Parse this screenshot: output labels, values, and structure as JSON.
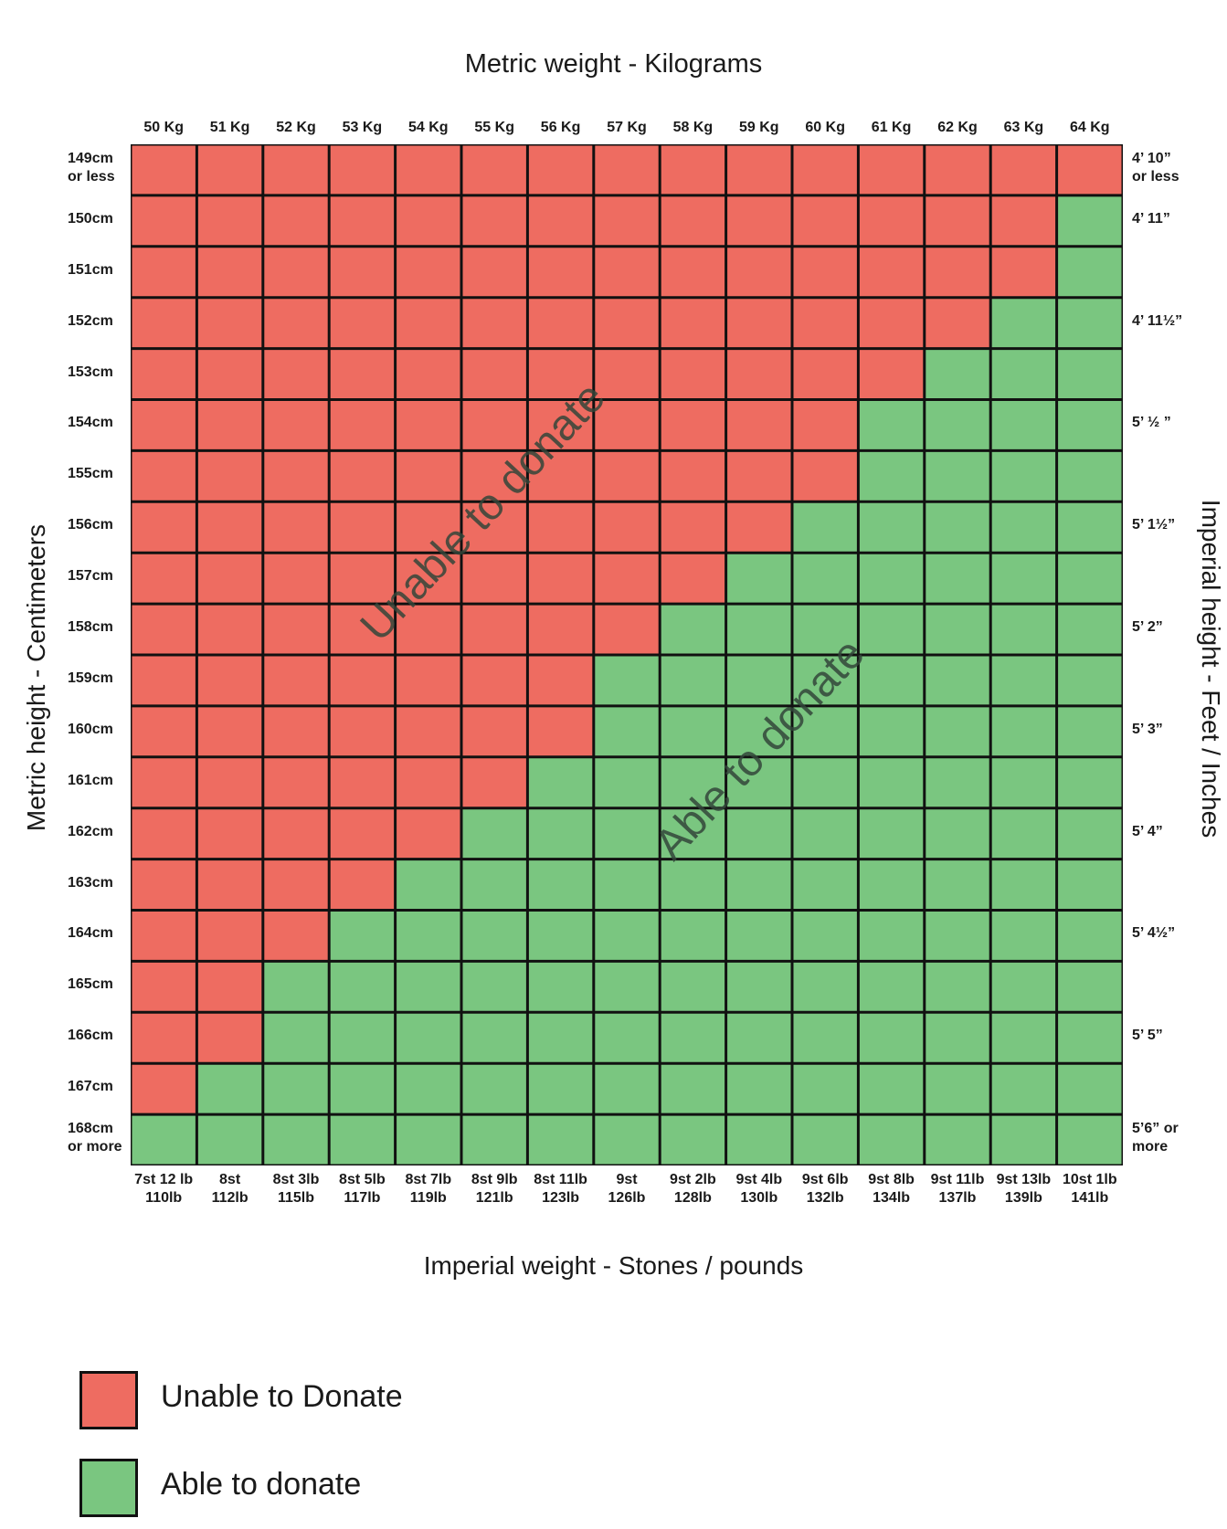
{
  "chart_data": {
    "type": "heatmap",
    "title_top": "Metric weight - Kilograms",
    "title_bottom": "Imperial weight - Stones / pounds",
    "ylabel_left": "Metric height - Centimeters",
    "ylabel_right": "Imperial height - Feet / Inches",
    "columns_kg": [
      "50 Kg",
      "51 Kg",
      "52 Kg",
      "53 Kg",
      "54 Kg",
      "55 Kg",
      "56 Kg",
      "57 Kg",
      "58 Kg",
      "59 Kg",
      "60 Kg",
      "61 Kg",
      "62 Kg",
      "63 Kg",
      "64 Kg"
    ],
    "columns_imperial": [
      [
        "7st 12 lb",
        "110lb"
      ],
      [
        "8st",
        "112lb"
      ],
      [
        "8st 3lb",
        "115lb"
      ],
      [
        "8st 5lb",
        "117lb"
      ],
      [
        "8st 7lb",
        "119lb"
      ],
      [
        "8st 9lb",
        "121lb"
      ],
      [
        "8st 11lb",
        "123lb"
      ],
      [
        "9st",
        "126lb"
      ],
      [
        "9st 2lb",
        "128lb"
      ],
      [
        "9st 4lb",
        "130lb"
      ],
      [
        "9st 6lb",
        "132lb"
      ],
      [
        "9st 8lb",
        "134lb"
      ],
      [
        "9st 11lb",
        "137lb"
      ],
      [
        "9st 13lb",
        "139lb"
      ],
      [
        "10st 1lb",
        "141lb"
      ]
    ],
    "rows_cm": [
      [
        "149cm",
        "or less"
      ],
      [
        "150cm"
      ],
      [
        "151cm"
      ],
      [
        "152cm"
      ],
      [
        "153cm"
      ],
      [
        "154cm"
      ],
      [
        "155cm"
      ],
      [
        "156cm"
      ],
      [
        "157cm"
      ],
      [
        "158cm"
      ],
      [
        "159cm"
      ],
      [
        "160cm"
      ],
      [
        "161cm"
      ],
      [
        "162cm"
      ],
      [
        "163cm"
      ],
      [
        "164cm"
      ],
      [
        "165cm"
      ],
      [
        "166cm"
      ],
      [
        "167cm"
      ],
      [
        "168cm",
        "or more"
      ]
    ],
    "rows_imperial": [
      [
        "4’ 10”",
        "or less"
      ],
      [
        "4’ 11”"
      ],
      [
        ""
      ],
      [
        "4’ 11½”"
      ],
      [
        ""
      ],
      [
        "5’ ½ ”"
      ],
      [
        ""
      ],
      [
        "5’ 1½”"
      ],
      [
        ""
      ],
      [
        "5’ 2”"
      ],
      [
        ""
      ],
      [
        "5’ 3”"
      ],
      [
        ""
      ],
      [
        "5’ 4”"
      ],
      [
        ""
      ],
      [
        "5’ 4½”"
      ],
      [
        ""
      ],
      [
        "5’ 5”"
      ],
      [
        ""
      ],
      [
        "5’6” or",
        "more"
      ]
    ],
    "first_able_column_per_row": [
      15,
      14,
      14,
      13,
      12,
      11,
      11,
      10,
      9,
      8,
      7,
      7,
      6,
      5,
      4,
      3,
      2,
      2,
      1,
      0
    ],
    "values_legend": {
      "0": "Unable to Donate",
      "1": "Able to donate"
    },
    "colors": {
      "unable": "#ee6c61",
      "able": "#7ac680",
      "border": "#111111"
    },
    "region_labels": {
      "unable": "Unable to donate",
      "able": "Able to donate"
    }
  },
  "legend": {
    "unable_label": "Unable to Donate",
    "able_label": "Able to donate"
  }
}
